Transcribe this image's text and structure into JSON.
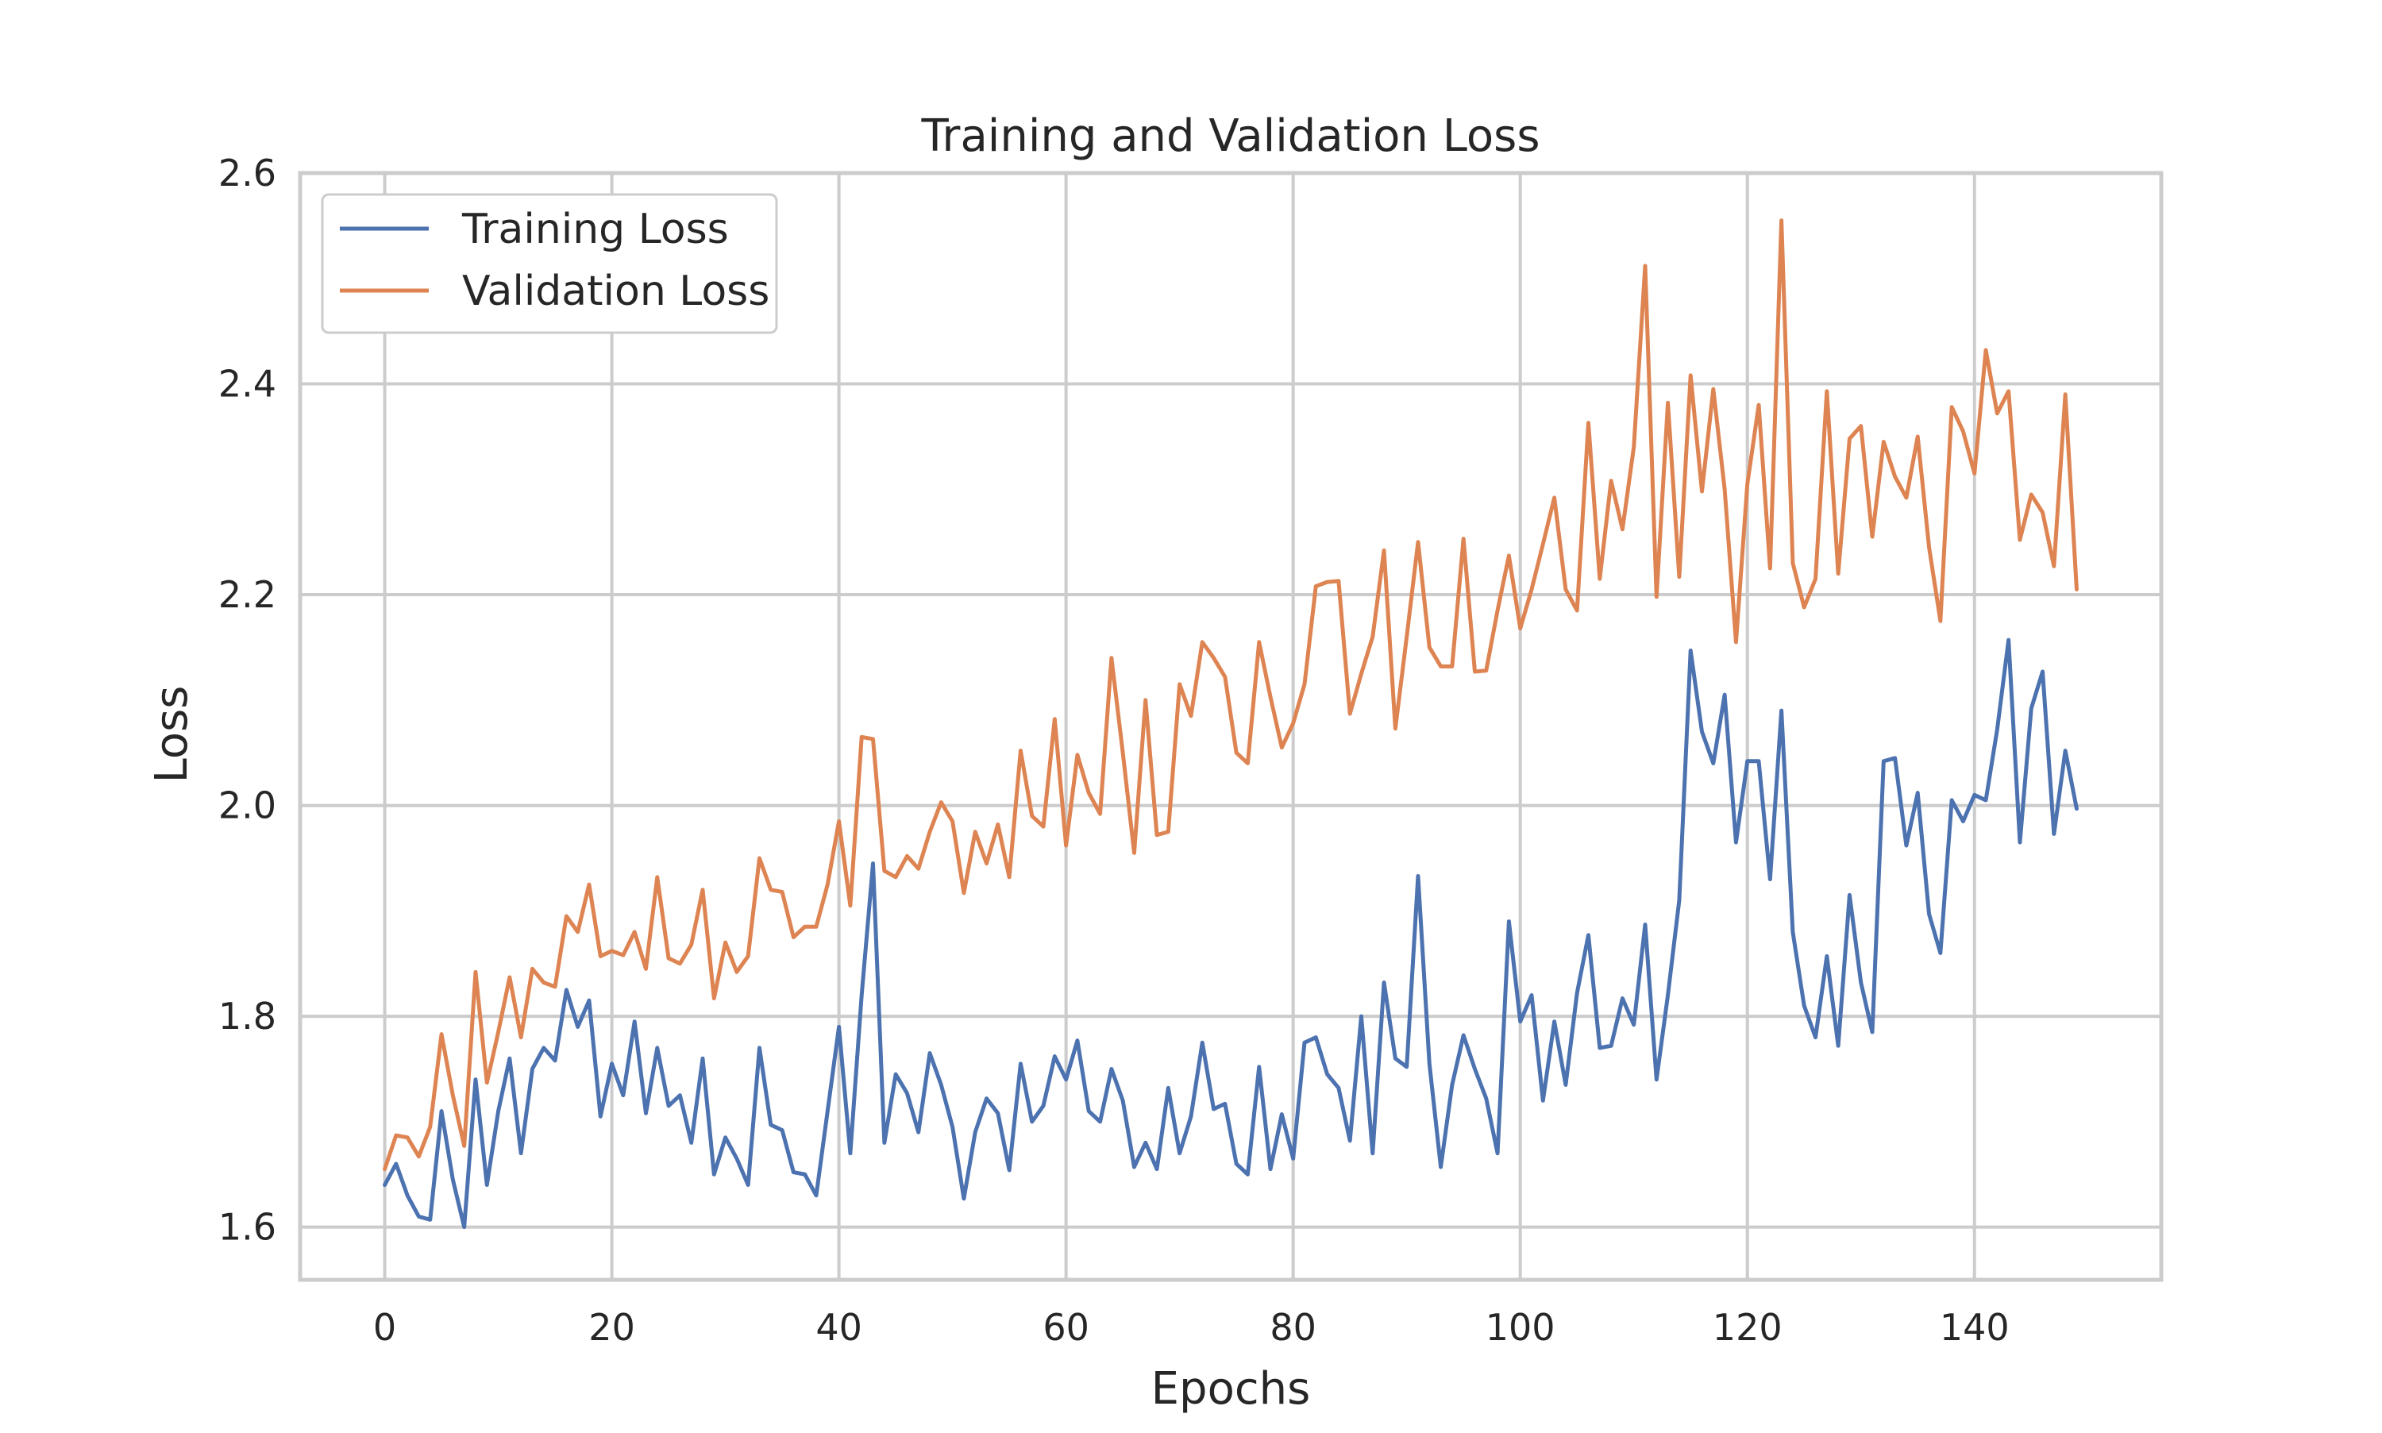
{
  "chart_data": {
    "type": "line",
    "title": "Training and Validation Loss",
    "xlabel": "Epochs",
    "ylabel": "Loss",
    "xlim": [
      -7.45,
      156.45
    ],
    "ylim": [
      1.55,
      2.6
    ],
    "xticks": [
      0,
      20,
      40,
      60,
      80,
      100,
      120,
      140
    ],
    "yticks": [
      1.6,
      1.8,
      2.0,
      2.2,
      2.4,
      2.6
    ],
    "xtick_labels": [
      "0",
      "20",
      "40",
      "60",
      "80",
      "100",
      "120",
      "140"
    ],
    "ytick_labels": [
      "1.6",
      "1.8",
      "2.0",
      "2.2",
      "2.4",
      "2.6"
    ],
    "grid": true,
    "legend_position": "top-left",
    "series": [
      {
        "name": "Training Loss",
        "color": "#4c72b0",
        "values": [
          1.64,
          1.66,
          1.63,
          1.61,
          1.607,
          1.71,
          1.645,
          1.6,
          1.74,
          1.64,
          1.71,
          1.76,
          1.67,
          1.75,
          1.77,
          1.758,
          1.825,
          1.79,
          1.815,
          1.705,
          1.755,
          1.725,
          1.795,
          1.708,
          1.77,
          1.715,
          1.725,
          1.68,
          1.76,
          1.65,
          1.685,
          1.665,
          1.64,
          1.77,
          1.697,
          1.692,
          1.652,
          1.65,
          1.63,
          1.71,
          1.79,
          1.67,
          1.82,
          1.945,
          1.68,
          1.745,
          1.727,
          1.69,
          1.765,
          1.735,
          1.695,
          1.627,
          1.69,
          1.722,
          1.708,
          1.654,
          1.755,
          1.7,
          1.715,
          1.762,
          1.74,
          1.777,
          1.71,
          1.7,
          1.75,
          1.72,
          1.657,
          1.68,
          1.655,
          1.732,
          1.67,
          1.705,
          1.775,
          1.712,
          1.717,
          1.66,
          1.65,
          1.752,
          1.655,
          1.707,
          1.665,
          1.775,
          1.78,
          1.745,
          1.732,
          1.682,
          1.8,
          1.67,
          1.832,
          1.76,
          1.752,
          1.933,
          1.755,
          1.657,
          1.735,
          1.782,
          1.75,
          1.722,
          1.67,
          1.89,
          1.795,
          1.82,
          1.72,
          1.795,
          1.735,
          1.822,
          1.877,
          1.77,
          1.772,
          1.817,
          1.792,
          1.887,
          1.74,
          1.82,
          1.91,
          2.147,
          2.07,
          2.04,
          2.105,
          1.965,
          2.042,
          2.042,
          1.93,
          2.09,
          1.88,
          1.81,
          1.78,
          1.857,
          1.772,
          1.915,
          1.832,
          1.785,
          2.042,
          2.045,
          1.962,
          2.012,
          1.897,
          1.86,
          2.005,
          1.985,
          2.01,
          2.005,
          2.072,
          2.157,
          1.965,
          2.092,
          2.127,
          1.973,
          2.052,
          1.997
        ]
      },
      {
        "name": "Validation Loss",
        "color": "#dd8452",
        "values": [
          1.655,
          1.687,
          1.685,
          1.667,
          1.695,
          1.783,
          1.725,
          1.677,
          1.842,
          1.737,
          1.785,
          1.837,
          1.78,
          1.845,
          1.832,
          1.828,
          1.895,
          1.88,
          1.925,
          1.857,
          1.862,
          1.858,
          1.88,
          1.845,
          1.932,
          1.855,
          1.85,
          1.868,
          1.92,
          1.817,
          1.87,
          1.842,
          1.857,
          1.95,
          1.92,
          1.918,
          1.875,
          1.885,
          1.885,
          1.925,
          1.985,
          1.905,
          2.065,
          2.063,
          1.938,
          1.932,
          1.952,
          1.94,
          1.975,
          2.003,
          1.985,
          1.917,
          1.975,
          1.945,
          1.982,
          1.932,
          2.052,
          1.99,
          1.98,
          2.082,
          1.962,
          2.048,
          2.012,
          1.992,
          2.14,
          2.05,
          1.955,
          2.1,
          1.972,
          1.975,
          2.115,
          2.085,
          2.155,
          2.14,
          2.122,
          2.05,
          2.04,
          2.155,
          2.103,
          2.055,
          2.078,
          2.115,
          2.208,
          2.212,
          2.213,
          2.087,
          2.125,
          2.16,
          2.242,
          2.073,
          2.16,
          2.25,
          2.15,
          2.132,
          2.132,
          2.253,
          2.127,
          2.128,
          2.185,
          2.237,
          2.168,
          2.205,
          2.248,
          2.292,
          2.205,
          2.185,
          2.363,
          2.215,
          2.308,
          2.262,
          2.34,
          2.512,
          2.198,
          2.382,
          2.217,
          2.408,
          2.298,
          2.395,
          2.3,
          2.155,
          2.305,
          2.38,
          2.225,
          2.555,
          2.23,
          2.188,
          2.215,
          2.393,
          2.22,
          2.348,
          2.36,
          2.255,
          2.345,
          2.312,
          2.292,
          2.35,
          2.245,
          2.175,
          2.378,
          2.355,
          2.315,
          2.432,
          2.372,
          2.393,
          2.252,
          2.295,
          2.278,
          2.227,
          2.39,
          2.205
        ]
      }
    ]
  }
}
